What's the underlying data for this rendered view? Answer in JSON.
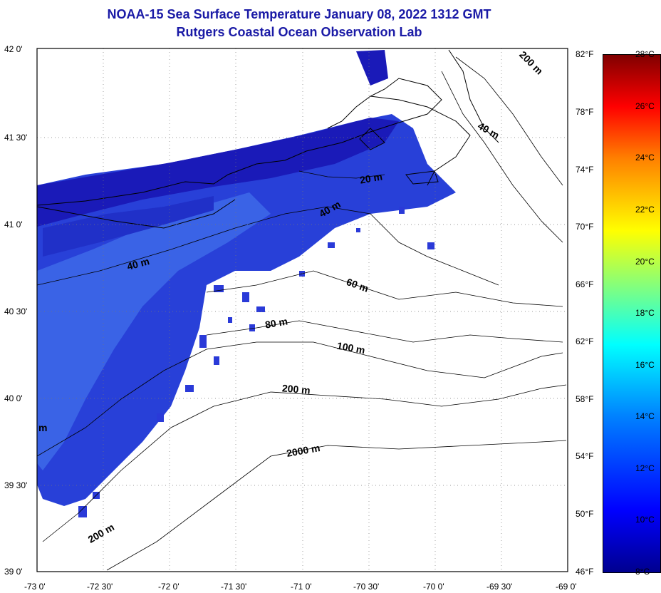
{
  "title_line1": "NOAA-15 Sea Surface Temperature January 08, 2022 1312 GMT",
  "title_line2": "Rutgers Coastal Ocean Observation Lab",
  "lat_labels": [
    "42 0'",
    "41 30'",
    "41 0'",
    "40 30'",
    "40 0'",
    "39 30'",
    "39 0'"
  ],
  "lon_labels": [
    "-73 0'",
    "-72 30'",
    "-72 0'",
    "-71 30'",
    "-71 0'",
    "-70 30'",
    "-70 0'",
    "-69 30'",
    "-69 0'"
  ],
  "fahrenheit_labels": [
    "82°F",
    "78°F",
    "74°F",
    "70°F",
    "66°F",
    "62°F",
    "58°F",
    "54°F",
    "50°F",
    "46°F"
  ],
  "celsius_labels": [
    "28°C",
    "26°C",
    "24°C",
    "22°C",
    "20°C",
    "18°C",
    "16°C",
    "14°C",
    "12°C",
    "10°C",
    "8°C"
  ],
  "contour_labels": [
    "200 m",
    "40 m",
    "20 m",
    "40 m",
    "40 m",
    "60 m",
    "80 m",
    "100 m",
    "200 m",
    "2000 m",
    "200 m",
    "m"
  ],
  "colors": {
    "title": "#1a1aa6",
    "sst_dark": "#1a1ab8",
    "sst_mid": "#2a3ad8",
    "land_line": "#000000"
  }
}
